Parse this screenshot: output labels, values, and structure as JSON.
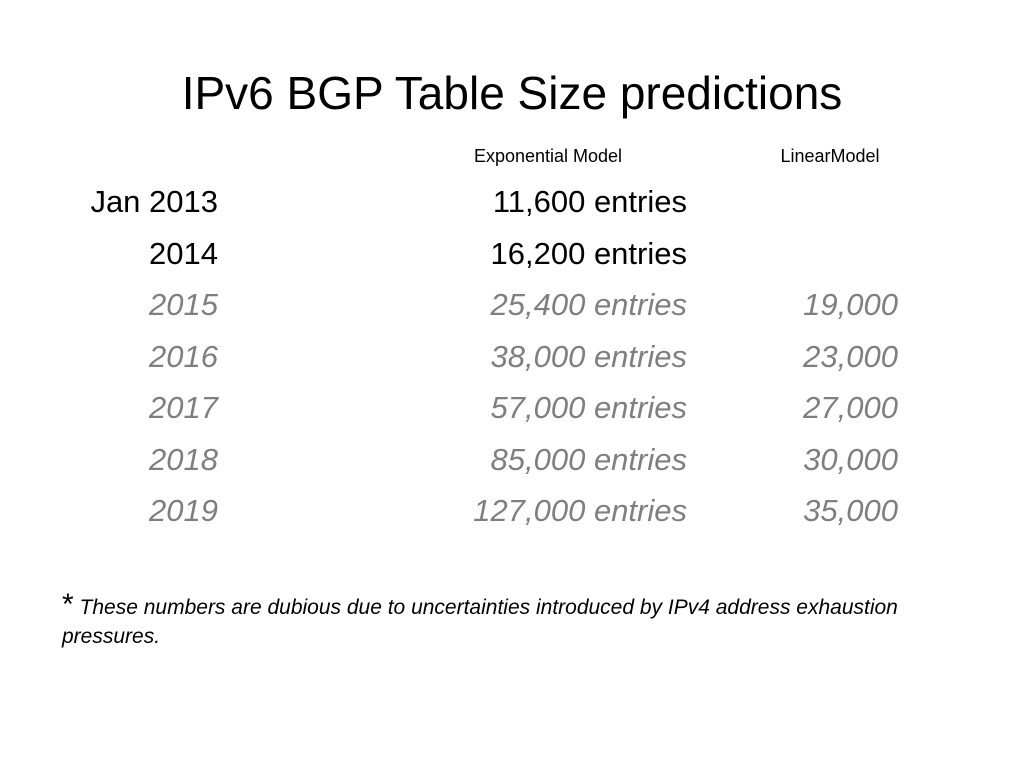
{
  "header": {
    "title": "IPv6 BGP Table Size predictions"
  },
  "table": {
    "columns": [
      "Exponential Model",
      "LinearModel"
    ],
    "rows": [
      [
        "Jan 2013",
        "11,600 entries"
      ],
      [
        "2014",
        "16,200 entries"
      ],
      [
        "2015",
        "25,400 entries",
        "19,000"
      ],
      [
        "2016",
        "38,000 entries",
        "23,000"
      ],
      [
        "2017",
        "57,000 entries",
        "27,000"
      ],
      [
        "2018",
        "85,000 entries",
        "30,000"
      ],
      [
        "2019",
        "127,000 entries",
        "35,000"
      ]
    ]
  },
  "footnote": {
    "marker": "*",
    "text": "These numbers are dubious due to uncertainties introduced by IPv4 address exhaustion pressures."
  }
}
